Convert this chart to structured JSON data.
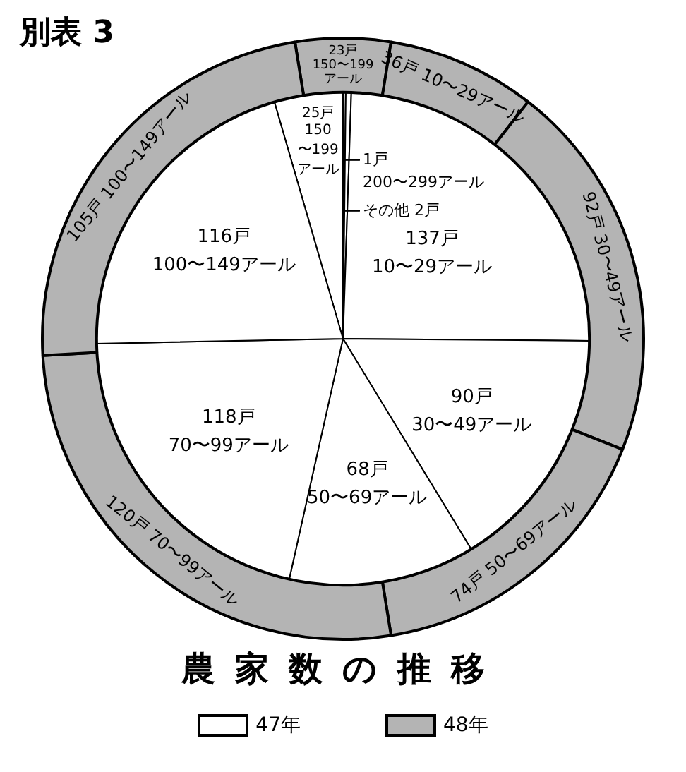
{
  "chart_data": {
    "type": "pie",
    "title": "農家数の推移",
    "annotations": [
      "別表 3"
    ],
    "categories": [
      "150〜199アール",
      "200〜299アール",
      "その他",
      "10〜29アール",
      "30〜49アール",
      "50〜69アール",
      "70〜99アール",
      "100〜149アール"
    ],
    "series": [
      {
        "name": "47年",
        "color": "#ffffff",
        "values": [
          25,
          1,
          2,
          137,
          90,
          68,
          118,
          116
        ],
        "value_labels": [
          "25戸",
          "1戸",
          "2戸",
          "137戸",
          "90戸",
          "68戸",
          "118戸",
          "116戸"
        ]
      },
      {
        "name": "48年",
        "type": "donut",
        "color": "#b4b4b4",
        "values": [
          23,
          null,
          null,
          36,
          92,
          74,
          120,
          105
        ],
        "value_labels": [
          "23戸",
          null,
          null,
          "36戸",
          "92戸",
          "74戸",
          "120戸",
          "105戸"
        ]
      }
    ],
    "legend": "bottom"
  }
}
